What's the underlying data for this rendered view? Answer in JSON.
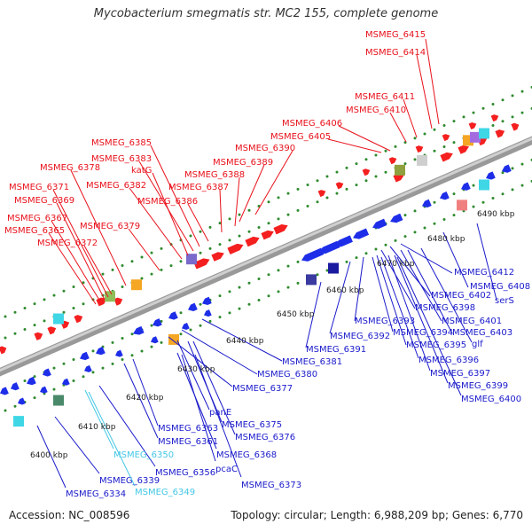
{
  "title": "Mycobacterium smegmatis str. MC2 155, complete genome",
  "footer": {
    "accession": "Accession: NC_008596",
    "topology": "Topology: circular; Length: 6,988,209 bp; Genes: 6,770"
  },
  "colors": {
    "background": "#ffffff",
    "backbone": "#888888",
    "forward_label": "#e8111b",
    "reverse_label": "#1a1acb",
    "rna_label": "#45c7e6",
    "forward_gene": "#f41f1f",
    "reverse_gene": "#1e2ee8",
    "tick_dots": "#2e8b2e"
  },
  "ticks": [
    "6400 kbp",
    "6410 kbp",
    "6420 kbp",
    "6430 kbp",
    "6440 kbp",
    "6450 kbp",
    "6460 kbp",
    "6470 kbp",
    "6480 kbp",
    "6490 kbp"
  ],
  "forward_labels": [
    "MSMEG_6415",
    "MSMEG_6414",
    "MSMEG_6411",
    "MSMEG_6410",
    "MSMEG_6406",
    "MSMEG_6405",
    "MSMEG_6390",
    "MSMEG_6389",
    "MSMEG_6388",
    "MSMEG_6387",
    "MSMEG_6386",
    "MSMEG_6385",
    "MSMEG_6383",
    "katG",
    "MSMEG_6382",
    "MSMEG_6378",
    "MSMEG_6371",
    "MSMEG_6369",
    "MSMEG_6379",
    "MSMEG_6367",
    "MSMEG_6365",
    "MSMEG_6372"
  ],
  "reverse_labels": [
    "MSMEG_6412",
    "MSMEG_6408",
    "serS",
    "MSMEG_6402",
    "MSMEG_6398",
    "MSMEG_6401",
    "MSMEG_6393",
    "MSMEG_6403",
    "MSMEG_6392",
    "MSMEG_6394",
    "glf",
    "MSMEG_6395",
    "MSMEG_6391",
    "MSMEG_6396",
    "MSMEG_6381",
    "MSMEG_6397",
    "MSMEG_6380",
    "MSMEG_6399",
    "MSMEG_6377",
    "MSMEG_6400",
    "panE",
    "MSMEG_6375",
    "MSMEG_6363",
    "MSMEG_6376",
    "MSMEG_6361",
    "MSMEG_6368",
    "MSMEG_6356",
    "pcaC",
    "MSMEG_6339",
    "MSMEG_6373",
    "MSMEG_6334"
  ],
  "rna_labels": [
    "MSMEG_6350",
    "MSMEG_6349"
  ]
}
